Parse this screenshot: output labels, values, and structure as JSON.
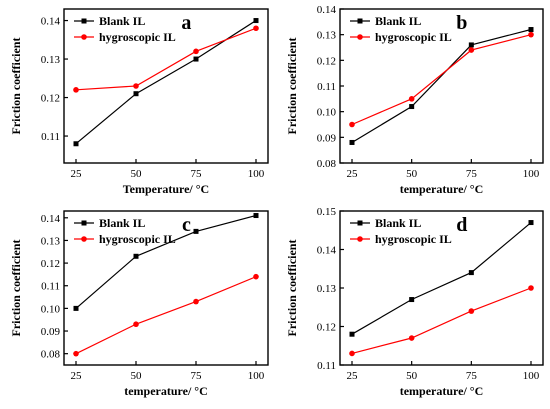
{
  "chart_data": [
    {
      "type": "line",
      "panel_label": "a",
      "categories": [
        "25",
        "50",
        "75",
        "100"
      ],
      "x": [
        25,
        50,
        75,
        100
      ],
      "series": [
        {
          "name": "Blank IL",
          "values": [
            0.108,
            0.121,
            0.13,
            0.14
          ],
          "color": "#000000",
          "marker": "square"
        },
        {
          "name": "hygroscopic IL",
          "values": [
            0.122,
            0.123,
            0.132,
            0.138
          ],
          "color": "#ff0000",
          "marker": "circle"
        }
      ],
      "xlabel": "Temperature/ °C",
      "ylabel": "Friction coefficient",
      "ylim": [
        0.103,
        0.143
      ],
      "yticks": [
        "0.11",
        "0.12",
        "0.13",
        "0.14"
      ],
      "legend": "top-left"
    },
    {
      "type": "line",
      "panel_label": "b",
      "categories": [
        "25",
        "50",
        "75",
        "100"
      ],
      "x": [
        25,
        50,
        75,
        100
      ],
      "series": [
        {
          "name": "Blank IL",
          "values": [
            0.088,
            0.102,
            0.126,
            0.132
          ],
          "color": "#000000",
          "marker": "square"
        },
        {
          "name": "hygroscopic IL",
          "values": [
            0.095,
            0.105,
            0.124,
            0.13
          ],
          "color": "#ff0000",
          "marker": "circle"
        }
      ],
      "xlabel": "temperature/ °C",
      "ylabel": "Friction coefficient",
      "ylim": [
        0.08,
        0.14
      ],
      "yticks": [
        "0.08",
        "0.09",
        "0.10",
        "0.11",
        "0.12",
        "0.13",
        "0.14"
      ],
      "legend": "top-left"
    },
    {
      "type": "line",
      "panel_label": "c",
      "categories": [
        "25",
        "50",
        "75",
        "100"
      ],
      "x": [
        25,
        50,
        75,
        100
      ],
      "series": [
        {
          "name": "Blank IL",
          "values": [
            0.1,
            0.123,
            0.134,
            0.141
          ],
          "color": "#000000",
          "marker": "square"
        },
        {
          "name": "hygroscopic IL",
          "values": [
            0.08,
            0.093,
            0.103,
            0.114
          ],
          "color": "#ff0000",
          "marker": "circle"
        }
      ],
      "xlabel": "temperature/ °C",
      "ylabel": "Friction coefficient",
      "ylim": [
        0.075,
        0.143
      ],
      "yticks": [
        "0.08",
        "0.09",
        "0.10",
        "0.11",
        "0.12",
        "0.13",
        "0.14"
      ],
      "legend": "top-left"
    },
    {
      "type": "line",
      "panel_label": "d",
      "categories": [
        "25",
        "50",
        "75",
        "100"
      ],
      "x": [
        25,
        50,
        75,
        100
      ],
      "series": [
        {
          "name": "Blank IL",
          "values": [
            0.118,
            0.127,
            0.134,
            0.147
          ],
          "color": "#000000",
          "marker": "square"
        },
        {
          "name": "hygroscopic IL",
          "values": [
            0.113,
            0.117,
            0.124,
            0.13
          ],
          "color": "#ff0000",
          "marker": "circle"
        }
      ],
      "xlabel": "temperature/ °C",
      "ylabel": "Friction coefficient",
      "ylim": [
        0.11,
        0.15
      ],
      "yticks": [
        "0.11",
        "0.12",
        "0.13",
        "0.14",
        "0.15"
      ],
      "legend": "top-left"
    }
  ]
}
